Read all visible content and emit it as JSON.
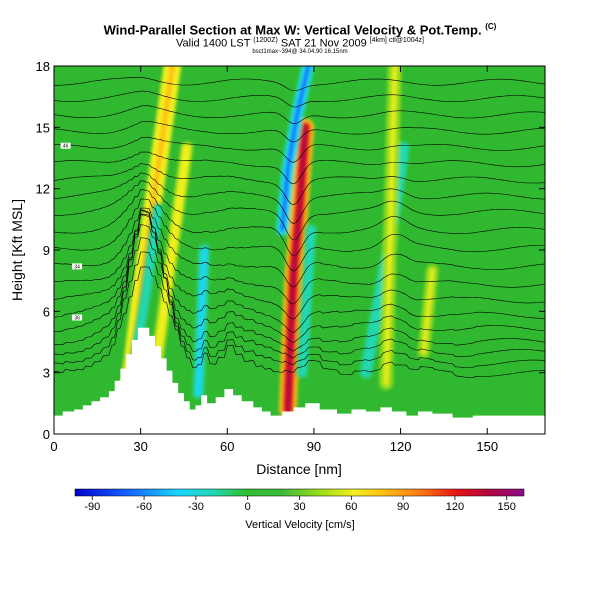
{
  "header": {
    "title": "Wind-Parallel Section at Max W: Vertical Velocity & Pot.Temp.",
    "title_mark": "(C)",
    "subtitle_a": "Valid 1400 LST",
    "subtitle_time": "(1200Z)",
    "subtitle_b": "SAT 21 Nov 2009",
    "subtitle_mark": "[4km] ctl@1004z]",
    "info": "bsct1max~394@ 34.04,90 16.15nm"
  },
  "chart_data": {
    "type": "heatmap",
    "xlabel": "Distance [nm]",
    "ylabel": "Height [Kft MSL]",
    "xlim": [
      0,
      170
    ],
    "ylim": [
      0,
      18
    ],
    "xticks": [
      0,
      30,
      60,
      90,
      120,
      150
    ],
    "yticks": [
      0,
      3,
      6,
      9,
      12,
      15,
      18
    ],
    "colorbar": {
      "label": "Vertical Velocity [cm/s]",
      "ticks": [
        -90,
        -60,
        -30,
        0,
        30,
        60,
        90,
        120,
        150
      ],
      "range": [
        -100,
        160
      ]
    },
    "colors": {
      "background": "#30b830",
      "ridge": "#ffffff"
    },
    "terrain": {
      "x": [
        0,
        3,
        3,
        7,
        7,
        10,
        10,
        13,
        13,
        16,
        16,
        19,
        19,
        21,
        21,
        23,
        23,
        25,
        25,
        27,
        27,
        29,
        29,
        33,
        33,
        35,
        35,
        37,
        37,
        39,
        39,
        41,
        41,
        43,
        43,
        45,
        45,
        47,
        47,
        49,
        49,
        51,
        51,
        53,
        53,
        56,
        56,
        59,
        59,
        62,
        62,
        65,
        65,
        69,
        69,
        72,
        72,
        75,
        75,
        79,
        79,
        83,
        83,
        87,
        87,
        92,
        92,
        98,
        98,
        103,
        103,
        108,
        108,
        113,
        113,
        117,
        117,
        122,
        122,
        126,
        126,
        131,
        131,
        138,
        138,
        145,
        145,
        152,
        152,
        170
      ],
      "y": [
        0.9,
        0.9,
        1.1,
        1.1,
        1.2,
        1.2,
        1.4,
        1.4,
        1.6,
        1.6,
        1.8,
        1.8,
        2.1,
        2.1,
        2.6,
        2.6,
        3.2,
        3.2,
        3.9,
        3.9,
        4.6,
        4.6,
        5.2,
        5.2,
        4.8,
        4.8,
        4.3,
        4.3,
        3.7,
        3.7,
        3.1,
        3.1,
        2.5,
        2.5,
        2.0,
        2.0,
        1.6,
        1.6,
        1.2,
        1.2,
        1.4,
        1.4,
        1.9,
        1.9,
        1.5,
        1.5,
        1.8,
        1.8,
        2.2,
        2.2,
        1.9,
        1.9,
        1.6,
        1.6,
        1.3,
        1.3,
        1.1,
        1.1,
        0.9,
        0.9,
        1.1,
        1.1,
        1.3,
        1.3,
        1.5,
        1.5,
        1.2,
        1.2,
        1.0,
        1.0,
        1.2,
        1.2,
        1.1,
        1.1,
        1.3,
        1.3,
        1.1,
        1.1,
        0.9,
        0.9,
        1.1,
        1.1,
        1.0,
        1.0,
        0.8,
        0.8,
        0.9,
        0.9,
        0.9,
        0.9
      ]
    },
    "features": [
      {
        "type": "updraft",
        "x": [
          25,
          31,
          36,
          41
        ],
        "y": [
          1,
          8,
          13,
          18
        ],
        "width": 3.2,
        "value": 70
      },
      {
        "type": "downdraft",
        "x": [
          28,
          32,
          36
        ],
        "y": [
          3.5,
          7,
          11
        ],
        "width": 2.3,
        "value": -35
      },
      {
        "type": "updraft",
        "x": [
          34,
          38,
          42,
          46
        ],
        "y": [
          2,
          6,
          10,
          14
        ],
        "width": 2.3,
        "value": 45
      },
      {
        "type": "downdraft",
        "x": [
          50,
          52
        ],
        "y": [
          2,
          9
        ],
        "width": 2.8,
        "value": -45
      },
      {
        "type": "updraft",
        "x": [
          81,
          82,
          83,
          85,
          87
        ],
        "y": [
          1.2,
          5,
          8,
          11,
          15
        ],
        "width": 3.2,
        "value": 140
      },
      {
        "type": "downdraft",
        "x": [
          79,
          81,
          84,
          88
        ],
        "y": [
          10,
          13,
          15.5,
          18
        ],
        "width": 2.4,
        "value": -85
      },
      {
        "type": "downdraft",
        "x": [
          86,
          89
        ],
        "y": [
          3,
          10
        ],
        "width": 2.5,
        "value": -40
      },
      {
        "type": "downdraft",
        "x": [
          108,
          113,
          117,
          121
        ],
        "y": [
          3,
          7,
          10,
          14
        ],
        "width": 3.0,
        "value": -40
      },
      {
        "type": "updraft",
        "x": [
          115,
          118
        ],
        "y": [
          2.5,
          18
        ],
        "width": 2.5,
        "value": 40
      },
      {
        "type": "updraft",
        "x": [
          128,
          131
        ],
        "y": [
          4,
          8
        ],
        "width": 2.2,
        "value": 35
      }
    ],
    "isentropes": [
      {
        "label": "",
        "base": 2.4
      },
      {
        "label": "",
        "base": 3.0
      },
      {
        "label": "",
        "base": 3.6
      },
      {
        "label": "",
        "base": 4.2
      },
      {
        "label": "",
        "base": 4.9
      },
      {
        "label": "36",
        "base": 5.6
      },
      {
        "label": "",
        "base": 6.4
      },
      {
        "label": "",
        "base": 7.2
      },
      {
        "label": "34",
        "base": 8.1
      },
      {
        "label": "",
        "base": 9.0
      },
      {
        "label": "",
        "base": 9.9
      },
      {
        "label": "",
        "base": 10.8
      },
      {
        "label": "",
        "base": 11.6
      },
      {
        "label": "",
        "base": 12.4
      },
      {
        "label": "",
        "base": 13.2
      },
      {
        "label": "46",
        "base": 14.0
      },
      {
        "label": "",
        "base": 14.8
      },
      {
        "label": "",
        "base": 15.6
      },
      {
        "label": "",
        "base": 16.4
      },
      {
        "label": "",
        "base": 17.2
      }
    ]
  }
}
